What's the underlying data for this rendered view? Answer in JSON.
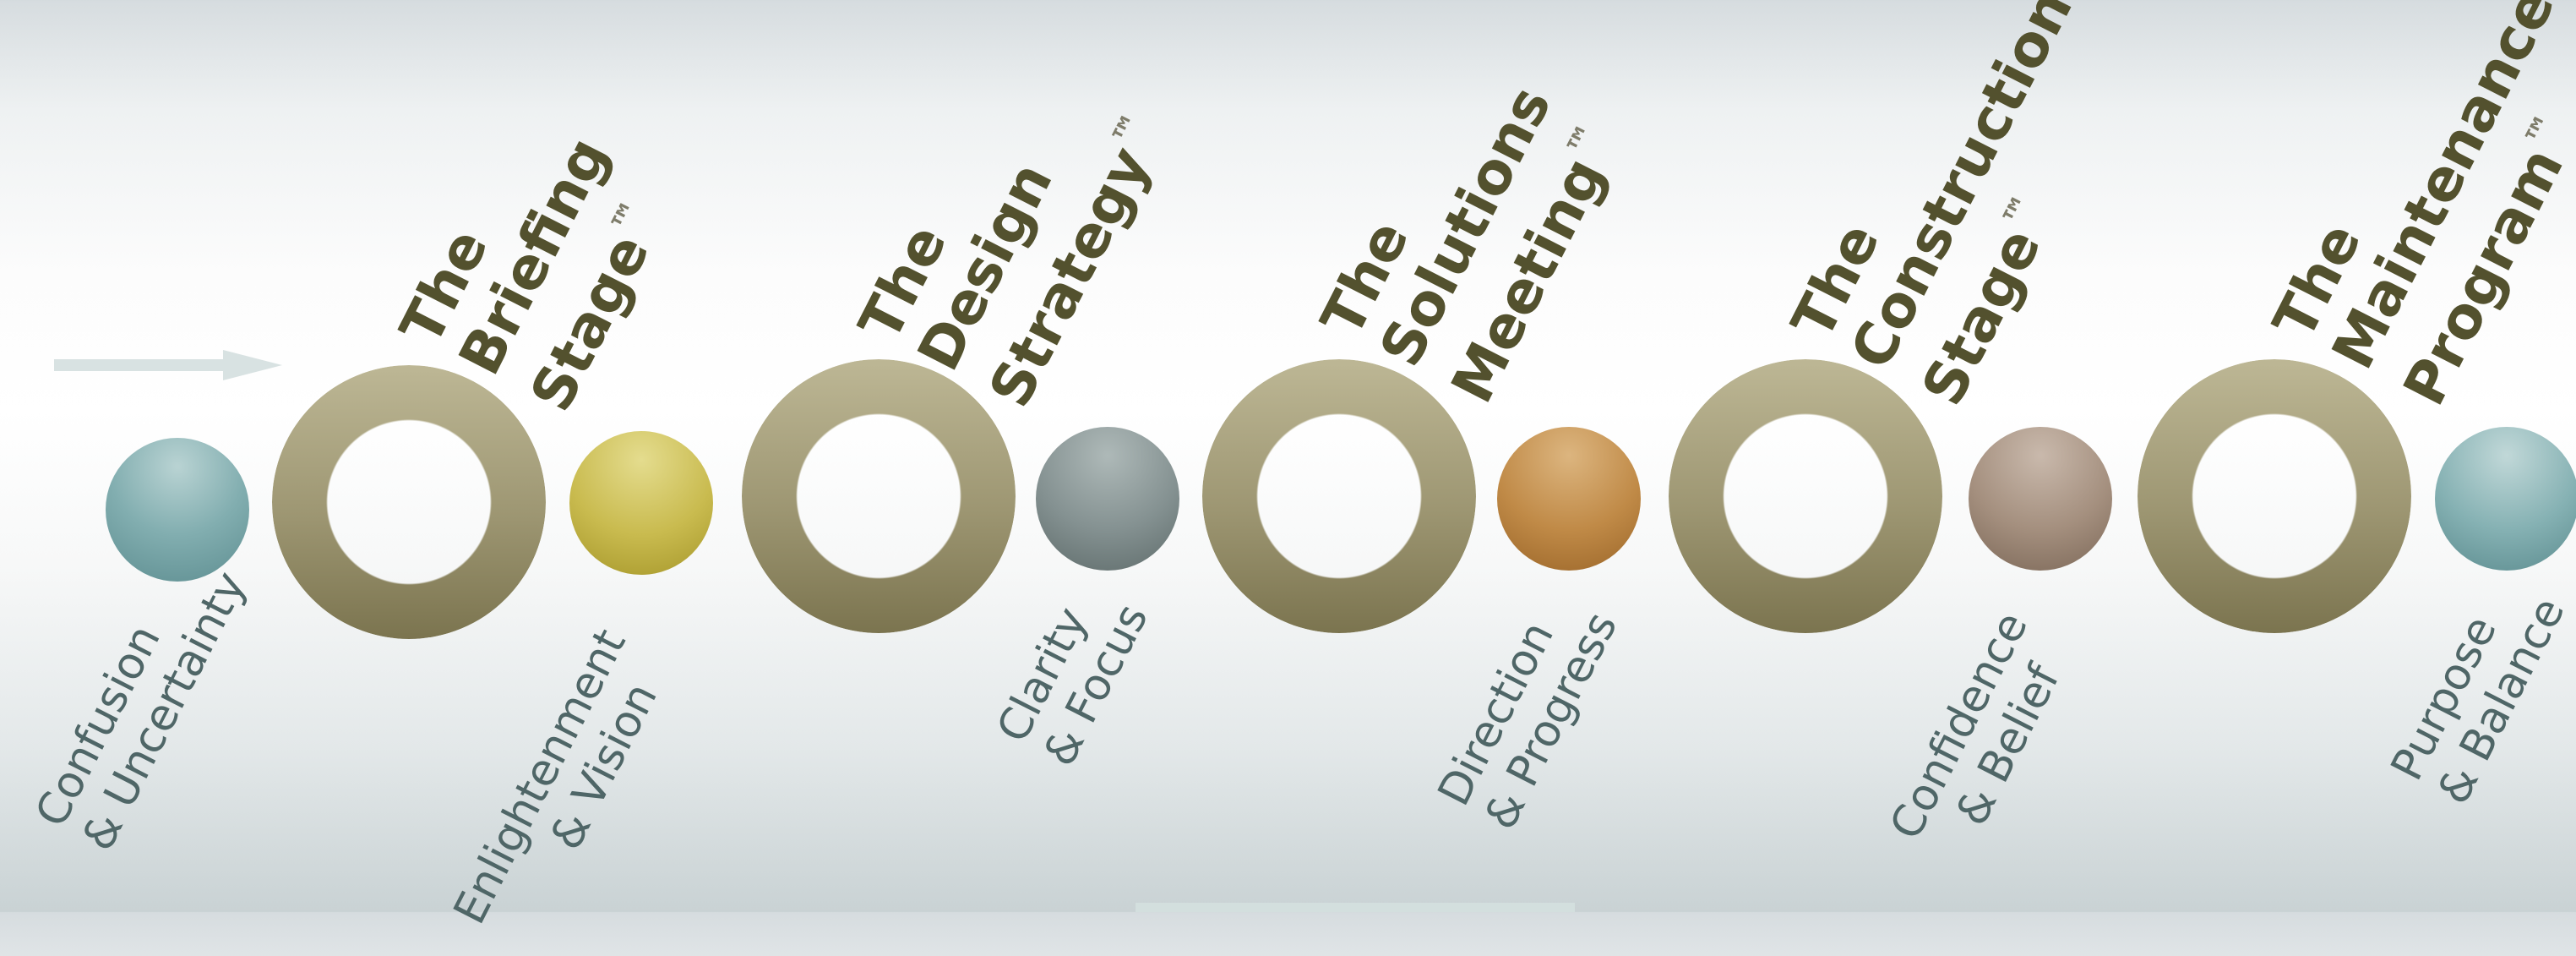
{
  "stages": [
    {
      "lines": [
        "The",
        "Briefing",
        "Stage"
      ],
      "mark": "™"
    },
    {
      "lines": [
        "The",
        "Design",
        "Strategy"
      ],
      "mark": "™"
    },
    {
      "lines": [
        "The",
        "Solutions",
        "Meeting"
      ],
      "mark": "™"
    },
    {
      "lines": [
        "The",
        "Construction",
        "Stage"
      ],
      "mark": "™"
    },
    {
      "lines": [
        "The",
        "Maintenance",
        "Program"
      ],
      "mark": "™"
    }
  ],
  "states": [
    {
      "lines": [
        "Confusion",
        "& Uncertainty"
      ],
      "color": "teal-blue"
    },
    {
      "lines": [
        "Enlightenment",
        "& Vision"
      ],
      "color": "olive-yellow"
    },
    {
      "lines": [
        "Clarity",
        "& Focus"
      ],
      "color": "slate-grey"
    },
    {
      "lines": [
        "Direction",
        "& Progress"
      ],
      "color": "amber-orange"
    },
    {
      "lines": [
        "Confidence",
        "& Belief"
      ],
      "color": "taupe-brown"
    },
    {
      "lines": [
        "Purpose",
        "& Balance"
      ],
      "color": "teal-blue"
    }
  ],
  "colors": {
    "ring": "#9d9672",
    "title_text": "#53512e",
    "state_text": "#4f6667",
    "ball_teal": "#6fa3a6",
    "ball_yellow": "#c4b547",
    "ball_grey": "#7f8c8b",
    "ball_orange": "#bf8a45",
    "ball_brown": "#a08d7c"
  }
}
